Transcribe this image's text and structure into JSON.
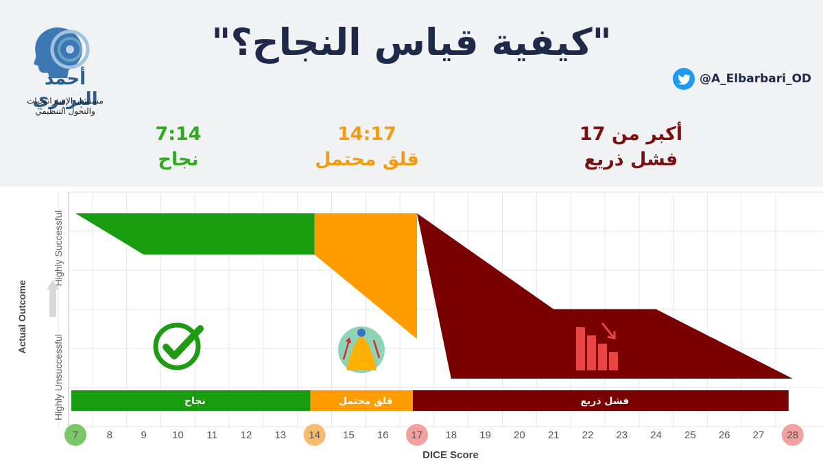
{
  "header": {
    "title": "\"كيفية قياس النجاح؟\"",
    "logo_name": "أحمد البربري",
    "logo_subtitle_1": "مستشار الإستراتيجيات",
    "logo_subtitle_2": "والتحول التنظيمي",
    "twitter_handle": "@A_Elbarbari_OD"
  },
  "categories": [
    {
      "range": "7:14",
      "label": "نجاح",
      "color": "#2eaa1c"
    },
    {
      "range": "14:17",
      "label": "قلق محتمل",
      "color": "#f39c12"
    },
    {
      "range": "أكبر من 17",
      "label": "فشل ذريع",
      "color": "#7a1010"
    }
  ],
  "colors": {
    "success": "#1a9c10",
    "anxiety": "#ff9d00",
    "failure": "#7a0000"
  },
  "chart_data": {
    "type": "area",
    "xlabel": "DICE Score",
    "ylabel": "Actual Outcome",
    "y_top_label": "Highly Successful",
    "y_bottom_label": "Highly Unsuccessful",
    "xlim": [
      7,
      28
    ],
    "ylim": [
      0,
      1
    ],
    "ticks": [
      7,
      8,
      9,
      10,
      11,
      12,
      13,
      14,
      15,
      16,
      17,
      18,
      19,
      20,
      21,
      22,
      23,
      24,
      25,
      26,
      27,
      28
    ],
    "highlighted_ticks": [
      {
        "value": 7,
        "color": "#7cc66a"
      },
      {
        "value": 14,
        "color": "#f7bb70"
      },
      {
        "value": 17,
        "color": "#f3a0a0"
      },
      {
        "value": 28,
        "color": "#f3a0a0"
      }
    ],
    "zones": [
      {
        "name": "نجاح",
        "color": "#1a9c10",
        "upper": [
          [
            7,
            1.0
          ],
          [
            14,
            1.0
          ]
        ],
        "lower": [
          [
            7,
            1.0
          ],
          [
            9,
            0.75
          ],
          [
            14,
            0.75
          ]
        ]
      },
      {
        "name": "قلق محتمل",
        "color": "#ff9d00",
        "upper": [
          [
            14,
            1.0
          ],
          [
            17,
            1.0
          ]
        ],
        "lower": [
          [
            14,
            0.75
          ],
          [
            17,
            0.24
          ]
        ]
      },
      {
        "name": "فشل ذريع",
        "color": "#7a0000",
        "upper": [
          [
            17,
            1.0
          ],
          [
            21,
            0.42
          ],
          [
            24,
            0.42
          ],
          [
            28,
            0.0
          ]
        ],
        "lower": [
          [
            17,
            1.0
          ],
          [
            18,
            0.0
          ],
          [
            28,
            0.0
          ]
        ]
      }
    ],
    "bands": [
      {
        "label": "نجاح",
        "from": 7,
        "to": 14,
        "color": "#1a9c10"
      },
      {
        "label": "قلق محتمل",
        "from": 14,
        "to": 17,
        "color": "#ff9d00"
      },
      {
        "label": "فشل ذريع",
        "from": 17,
        "to": 28,
        "color": "#7a0000"
      }
    ],
    "grid": true
  }
}
